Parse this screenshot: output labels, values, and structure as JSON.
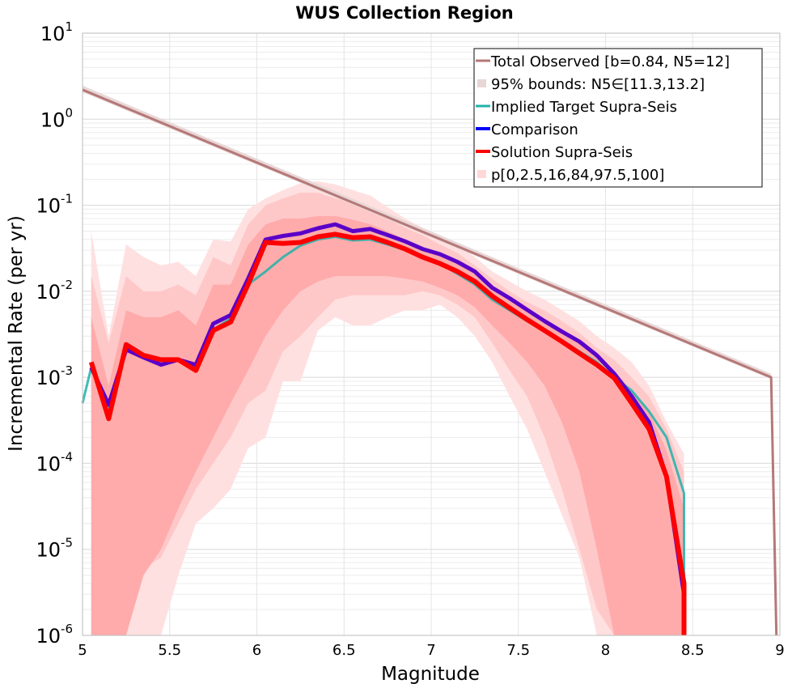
{
  "chart_data": {
    "type": "line",
    "title": "WUS Collection Region",
    "xlabel": "Magnitude",
    "ylabel": "Incremental Rate (per yr)",
    "xlim": [
      5,
      9
    ],
    "ylim": [
      1e-06,
      10
    ],
    "yscale": "log",
    "grid": true,
    "legend_position": "top-right",
    "x_ticks": [
      "5",
      "5.5",
      "6",
      "6.5",
      "7",
      "7.5",
      "8",
      "8.5",
      "9"
    ],
    "y_ticks": [
      {
        "base": "10",
        "exp": "1"
      },
      {
        "base": "10",
        "exp": "0"
      },
      {
        "base": "10",
        "exp": "-1"
      },
      {
        "base": "10",
        "exp": "-2"
      },
      {
        "base": "10",
        "exp": "-3"
      },
      {
        "base": "10",
        "exp": "-4"
      },
      {
        "base": "10",
        "exp": "-5"
      },
      {
        "base": "10",
        "exp": "-6"
      }
    ],
    "legend": [
      {
        "label": "Total Observed [b=0.84, N5=12]",
        "style": "line",
        "color": "#b57878"
      },
      {
        "label": "95% bounds: N5∈[11.3,13.2]",
        "style": "band",
        "color": "#e8d6d6"
      },
      {
        "label": "Implied Target Supra-Seis",
        "style": "line",
        "color": "#20b2aa"
      },
      {
        "label": "Comparison",
        "style": "line",
        "color": "#0000ff"
      },
      {
        "label": "Solution Supra-Seis",
        "style": "line",
        "color": "#ff0000"
      },
      {
        "label": "p[0,2.5,16,84,97.5,100]",
        "style": "band",
        "color": "#ffd8d8"
      }
    ],
    "series": [
      {
        "name": "Total Observed [b=0.84, N5=12]",
        "color": "#b57878",
        "x": [
          5.0,
          8.95,
          8.95,
          8.98
        ],
        "y": [
          2.2,
          0.001,
          0.001,
          1e-06
        ]
      },
      {
        "name": "Implied Target Supra-Seis",
        "color": "#20b2aa",
        "x": [
          5.0,
          5.05,
          5.15,
          5.25,
          5.35,
          5.45,
          5.55,
          5.65,
          5.75,
          5.85,
          5.95,
          6.05,
          6.15,
          6.25,
          6.35,
          6.45,
          6.55,
          6.65,
          6.75,
          6.85,
          6.95,
          7.05,
          7.15,
          7.25,
          7.35,
          7.45,
          7.55,
          7.65,
          7.75,
          7.85,
          7.95,
          8.05,
          8.15,
          8.25,
          8.35,
          8.45,
          8.45
        ],
        "y": [
          0.0005,
          0.0013,
          0.00045,
          0.0021,
          0.0017,
          0.0014,
          0.0016,
          0.0013,
          0.0036,
          0.0048,
          0.012,
          0.017,
          0.025,
          0.034,
          0.04,
          0.043,
          0.039,
          0.04,
          0.035,
          0.03,
          0.025,
          0.021,
          0.016,
          0.012,
          0.008,
          0.006,
          0.0045,
          0.0034,
          0.0027,
          0.002,
          0.0015,
          0.001,
          0.0007,
          0.0004,
          0.0002,
          4.5e-05,
          1e-06
        ]
      },
      {
        "name": "Comparison",
        "color": "#5a00c8",
        "x": [
          5.05,
          5.15,
          5.25,
          5.35,
          5.45,
          5.55,
          5.65,
          5.75,
          5.85,
          5.95,
          6.05,
          6.15,
          6.25,
          6.35,
          6.45,
          6.55,
          6.65,
          6.75,
          6.85,
          6.95,
          7.05,
          7.15,
          7.25,
          7.35,
          7.45,
          7.55,
          7.65,
          7.75,
          7.85,
          7.95,
          8.05,
          8.15,
          8.25,
          8.35,
          8.45,
          8.45
        ],
        "y": [
          0.0013,
          0.00048,
          0.0021,
          0.0017,
          0.0014,
          0.0016,
          0.0014,
          0.0042,
          0.0053,
          0.014,
          0.04,
          0.044,
          0.047,
          0.054,
          0.06,
          0.05,
          0.053,
          0.045,
          0.038,
          0.031,
          0.027,
          0.022,
          0.017,
          0.011,
          0.0083,
          0.0061,
          0.0045,
          0.0034,
          0.0026,
          0.0018,
          0.0011,
          0.0006,
          0.0003,
          7e-05,
          3e-06,
          1e-06
        ]
      },
      {
        "name": "Solution Supra-Seis",
        "color": "#ff0000",
        "x": [
          5.05,
          5.15,
          5.25,
          5.35,
          5.45,
          5.55,
          5.65,
          5.75,
          5.85,
          5.95,
          6.05,
          6.15,
          6.25,
          6.35,
          6.45,
          6.55,
          6.65,
          6.75,
          6.85,
          6.95,
          7.05,
          7.15,
          7.25,
          7.35,
          7.45,
          7.55,
          7.65,
          7.75,
          7.85,
          7.95,
          8.05,
          8.15,
          8.25,
          8.35,
          8.45,
          8.45
        ],
        "y": [
          0.0015,
          0.00033,
          0.0024,
          0.0018,
          0.0016,
          0.0016,
          0.0012,
          0.0035,
          0.0044,
          0.012,
          0.037,
          0.036,
          0.037,
          0.043,
          0.046,
          0.042,
          0.043,
          0.037,
          0.031,
          0.025,
          0.021,
          0.017,
          0.013,
          0.0088,
          0.0064,
          0.0047,
          0.0035,
          0.0026,
          0.0019,
          0.0014,
          0.00098,
          0.0005,
          0.00025,
          7e-05,
          4e-06,
          1e-06
        ]
      }
    ],
    "bounds_band": {
      "name": "95% bounds: N5∈[11.3,13.2]",
      "x": [
        5.0,
        8.95
      ],
      "lower": [
        2.07,
        0.00095
      ],
      "upper": [
        2.45,
        0.0011
      ]
    },
    "percentile_bands": {
      "name": "p[0,2.5,16,84,97.5,100]",
      "x": [
        5.05,
        5.15,
        5.25,
        5.35,
        5.45,
        5.55,
        5.65,
        5.75,
        5.85,
        5.95,
        6.05,
        6.15,
        6.25,
        6.35,
        6.45,
        6.55,
        6.65,
        6.75,
        6.85,
        6.95,
        7.05,
        7.15,
        7.25,
        7.35,
        7.45,
        7.55,
        7.65,
        7.75,
        7.85,
        7.95,
        8.05,
        8.15,
        8.25,
        8.35,
        8.45
      ],
      "p0_100": {
        "low": [
          1e-06,
          1e-06,
          1e-06,
          1e-06,
          1e-06,
          5e-06,
          2e-05,
          3e-05,
          5e-05,
          0.00015,
          0.0002,
          0.0009,
          0.0009,
          0.0035,
          0.005,
          0.004,
          0.004,
          0.005,
          0.006,
          0.006,
          0.007,
          0.005,
          0.003,
          0.0015,
          0.0006,
          0.00025,
          8e-05,
          2.5e-05,
          8e-06,
          1e-06,
          1e-06,
          1e-06,
          1e-06,
          1e-06,
          1e-06
        ],
        "high": [
          0.05,
          0.003,
          0.035,
          0.025,
          0.02,
          0.022,
          0.015,
          0.04,
          0.038,
          0.09,
          0.12,
          0.15,
          0.18,
          0.19,
          0.175,
          0.15,
          0.13,
          0.095,
          0.07,
          0.055,
          0.045,
          0.035,
          0.025,
          0.017,
          0.013,
          0.01,
          0.008,
          0.006,
          0.0045,
          0.003,
          0.0022,
          0.0015,
          0.0008,
          0.0003,
          0.00013
        ]
      },
      "p2_16_84_97": {
        "low": [
          1e-06,
          1e-06,
          2e-06,
          6e-06,
          8e-06,
          2e-05,
          5e-05,
          0.0001,
          0.0002,
          0.0005,
          0.0007,
          0.002,
          0.003,
          0.005,
          0.008,
          0.009,
          0.009,
          0.009,
          0.009,
          0.01,
          0.009,
          0.007,
          0.005,
          0.0025,
          0.0012,
          0.0006,
          0.0002,
          5e-05,
          1e-05,
          2e-06,
          1e-06,
          1e-06,
          1e-06,
          1e-06,
          1e-06
        ],
        "high": [
          0.015,
          0.0025,
          0.015,
          0.01,
          0.01,
          0.012,
          0.009,
          0.025,
          0.02,
          0.06,
          0.1,
          0.12,
          0.14,
          0.14,
          0.12,
          0.11,
          0.09,
          0.07,
          0.055,
          0.045,
          0.035,
          0.028,
          0.02,
          0.014,
          0.01,
          0.0075,
          0.006,
          0.0045,
          0.0033,
          0.0022,
          0.0016,
          0.001,
          0.0006,
          0.00025,
          8e-05
        ]
      },
      "p16_84": {
        "low": [
          1e-06,
          1e-06,
          1e-06,
          5e-06,
          1e-05,
          3e-05,
          8e-05,
          0.0002,
          0.0005,
          0.0012,
          0.003,
          0.006,
          0.01,
          0.013,
          0.015,
          0.015,
          0.015,
          0.015,
          0.014,
          0.013,
          0.011,
          0.009,
          0.0065,
          0.004,
          0.0025,
          0.0015,
          0.0008,
          0.0003,
          8e-05,
          1e-05,
          1e-06,
          1e-06,
          1e-06,
          1e-06,
          1e-06
        ],
        "high": [
          0.005,
          0.0008,
          0.006,
          0.005,
          0.005,
          0.006,
          0.004,
          0.012,
          0.012,
          0.035,
          0.06,
          0.07,
          0.07,
          0.075,
          0.075,
          0.068,
          0.06,
          0.05,
          0.04,
          0.033,
          0.027,
          0.022,
          0.016,
          0.011,
          0.0082,
          0.006,
          0.0045,
          0.0034,
          0.0025,
          0.0017,
          0.0012,
          0.0007,
          0.0004,
          0.00014,
          3e-05
        ]
      }
    }
  }
}
